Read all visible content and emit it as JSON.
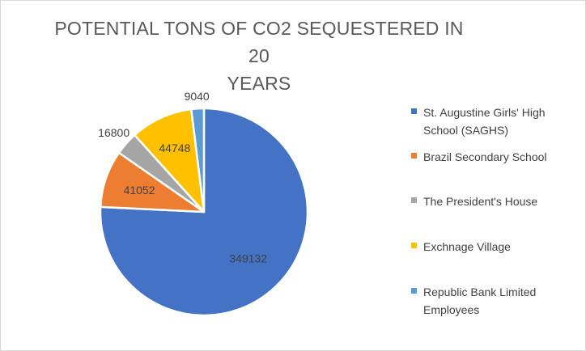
{
  "chart_data": {
    "type": "pie",
    "title": "POTENTIAL TONS OF CO2 SEQUESTERED IN 20 YEARS",
    "title_lines": [
      "POTENTIAL TONS OF CO2 SEQUESTERED IN 20",
      "YEARS"
    ],
    "categories": [
      "St. Augustine Girls' High School (SAGHS)",
      "Brazil Secondary School",
      "The President's House",
      "Exchnage Village",
      "Republic Bank Limited Employees"
    ],
    "values": [
      349132,
      41052,
      16800,
      44748,
      9040
    ],
    "data_labels": [
      "349132",
      "41052",
      "16800",
      "44748",
      "9040"
    ],
    "colors": [
      "#4472C4",
      "#ED7D31",
      "#A5A5A5",
      "#FFC000",
      "#5B9BD5"
    ],
    "legend_position": "right",
    "start_angle_deg": 0,
    "direction": "clockwise"
  }
}
